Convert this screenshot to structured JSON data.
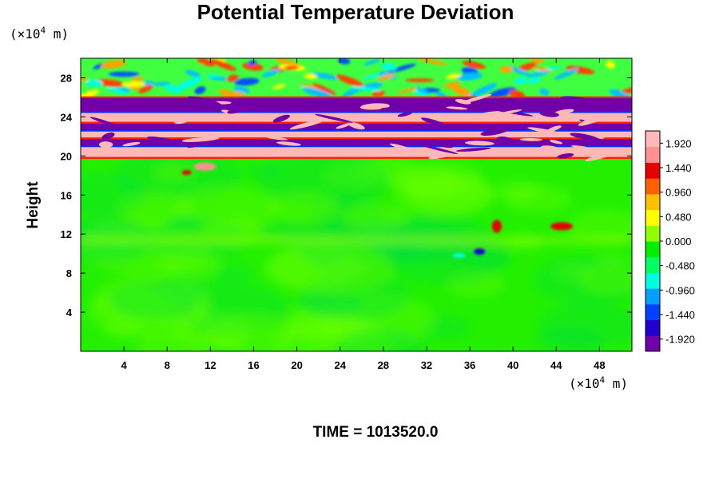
{
  "chart_data": {
    "type": "heatmap",
    "title": "Potential Temperature Deviation",
    "xlabel": "",
    "ylabel": "Height",
    "x_unit": {
      "base": "×10",
      "exponent": "4",
      "tail": " m"
    },
    "y_unit": {
      "base": "×10",
      "exponent": "4",
      "tail": " m"
    },
    "xlim": [
      0,
      51
    ],
    "ylim": [
      0,
      30
    ],
    "x_ticks": [
      "4",
      "8",
      "12",
      "16",
      "20",
      "24",
      "28",
      "32",
      "36",
      "40",
      "44",
      "48"
    ],
    "y_ticks": [
      "4",
      "8",
      "12",
      "16",
      "20",
      "24",
      "28"
    ],
    "colorbar": {
      "range": [
        -2.16,
        2.16
      ],
      "labels": [
        "1.920",
        "1.440",
        "0.960",
        "0.480",
        "0.000",
        "-0.480",
        "-0.960",
        "-1.440",
        "-1.920"
      ]
    },
    "field_features": [
      {
        "feature": "background",
        "value": 0.0
      },
      {
        "feature": "positive band",
        "y_range": [
          19.8,
          21.0
        ],
        "value": 2.0
      },
      {
        "feature": "negative band",
        "y_range": [
          21.0,
          21.8
        ],
        "value": -2.0
      },
      {
        "feature": "positive band",
        "y_range": [
          21.8,
          22.6
        ],
        "value": 2.0
      },
      {
        "feature": "negative band",
        "y_range": [
          22.6,
          23.4
        ],
        "value": -2.0
      },
      {
        "feature": "positive band",
        "y_range": [
          23.4,
          24.5
        ],
        "value": 2.0
      },
      {
        "feature": "negative band",
        "y_range": [
          24.5,
          26.0
        ],
        "value": -1.9
      },
      {
        "feature": "wave region",
        "y_range": [
          26.0,
          30.0
        ],
        "value_range": [
          -1.5,
          1.5
        ]
      }
    ]
  },
  "colors": {
    "colorbar_stops": [
      "#7000a8",
      "#2000d0",
      "#0040ff",
      "#00a0ff",
      "#00ffe0",
      "#00ff60",
      "#00ee00",
      "#90ff00",
      "#ffff00",
      "#ffc000",
      "#ff6000",
      "#e80000",
      "#ff9090",
      "#ffb8b8"
    ],
    "background_field": "#22f000"
  },
  "footer": {
    "text": "TIME = 1013520.0"
  }
}
